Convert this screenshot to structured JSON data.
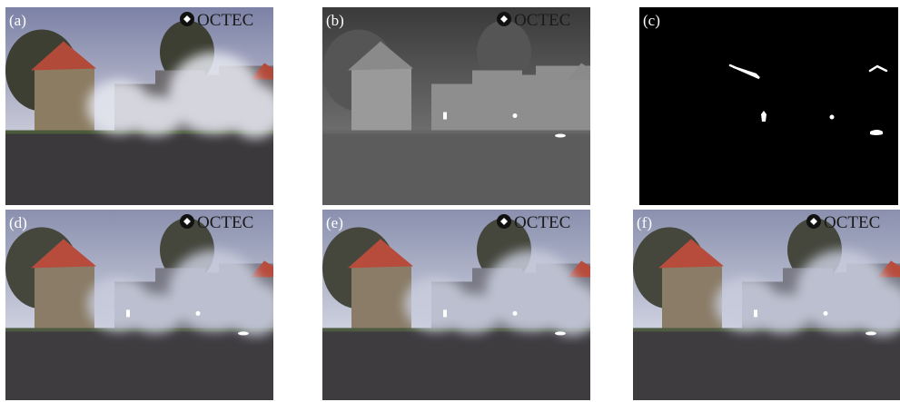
{
  "panels": [
    {
      "label": "(a)",
      "watermark": "OCTEC"
    },
    {
      "label": "(b)",
      "watermark": "OCTEC"
    },
    {
      "label": "(c)"
    },
    {
      "label": "(d)",
      "watermark": "OCTEC"
    },
    {
      "label": "(e)",
      "watermark": "OCTEC"
    },
    {
      "label": "(f)",
      "watermark": "OCTEC"
    }
  ]
}
